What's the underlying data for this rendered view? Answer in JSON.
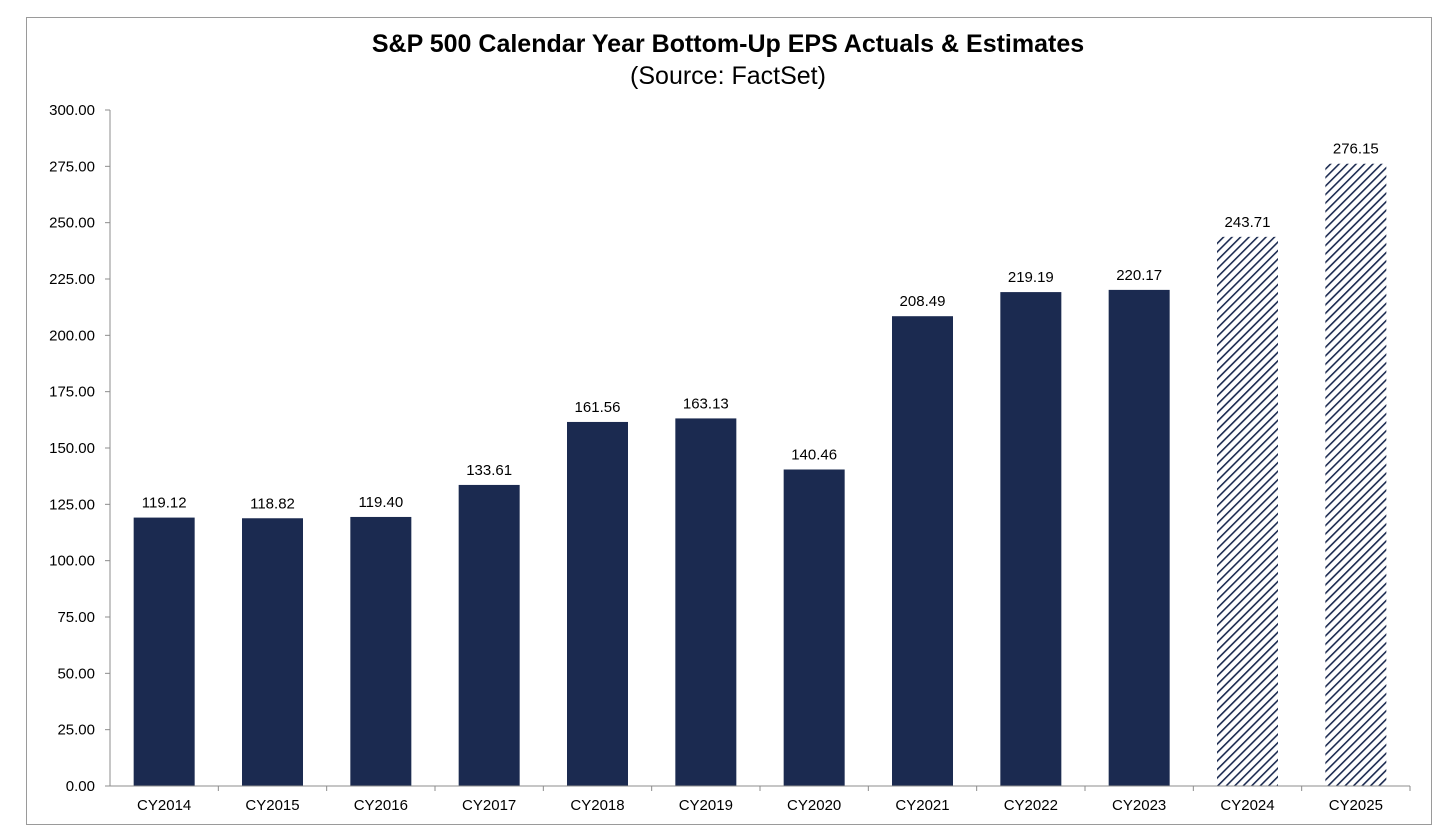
{
  "chart_data": {
    "type": "bar",
    "title": "S&P 500 Calendar Year Bottom-Up EPS Actuals & Estimates",
    "subtitle": "(Source: FactSet)",
    "xlabel": "",
    "ylabel": "",
    "categories": [
      "CY2014",
      "CY2015",
      "CY2016",
      "CY2017",
      "CY2018",
      "CY2019",
      "CY2020",
      "CY2021",
      "CY2022",
      "CY2023",
      "CY2024",
      "CY2025"
    ],
    "values": [
      119.12,
      118.82,
      119.4,
      133.61,
      161.56,
      163.13,
      140.46,
      208.49,
      219.19,
      220.17,
      243.71,
      276.15
    ],
    "value_labels": [
      "119.12",
      "118.82",
      "119.40",
      "133.61",
      "161.56",
      "163.13",
      "140.46",
      "208.49",
      "219.19",
      "220.17",
      "243.71",
      "276.15"
    ],
    "estimate": [
      false,
      false,
      false,
      false,
      false,
      false,
      false,
      false,
      false,
      false,
      true,
      true
    ],
    "ylim": [
      0,
      300
    ],
    "yticks": [
      "0.00",
      "25.00",
      "50.00",
      "75.00",
      "100.00",
      "125.00",
      "150.00",
      "175.00",
      "200.00",
      "225.00",
      "250.00",
      "275.00",
      "300.00"
    ],
    "grid": false,
    "legend": "none",
    "colors": {
      "actual": "#1b2a50",
      "estimate": "#1b2a50",
      "axis": "#8c8c8c"
    }
  }
}
